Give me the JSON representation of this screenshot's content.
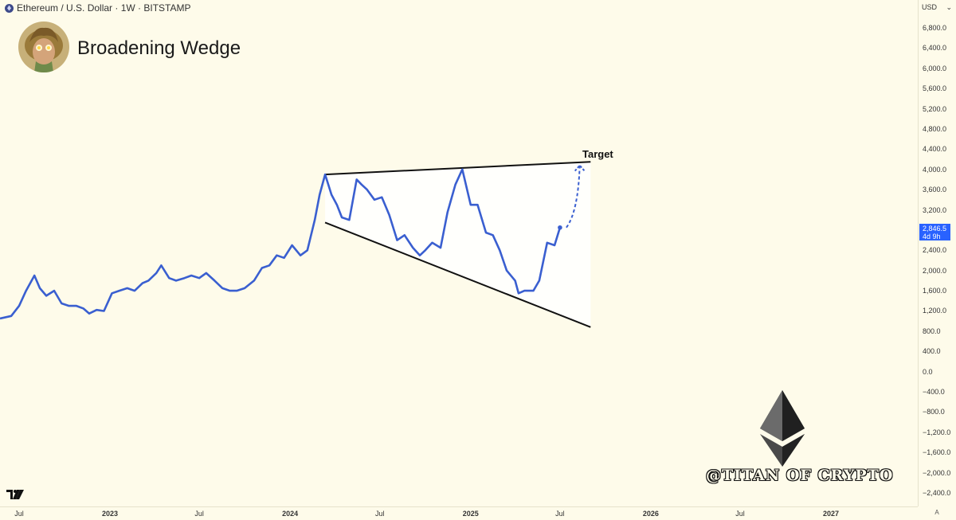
{
  "header": {
    "symbol_line": "Ethereum / U.S. Dollar · 1W · BITSTAMP",
    "title": "Broadening Wedge"
  },
  "price_axis": {
    "currency": "USD",
    "ticks": [
      "6,800.0",
      "6,400.0",
      "6,000.0",
      "5,600.0",
      "5,200.0",
      "4,800.0",
      "4,400.0",
      "4,000.0",
      "3,600.0",
      "3,200.0",
      "2,400.0",
      "2,000.0",
      "1,600.0",
      "1,200.0",
      "800.0",
      "400.0",
      "0.0",
      "−400.0",
      "−800.0",
      "−1,200.0",
      "−1,600.0",
      "−2,000.0",
      "−2,400.0"
    ],
    "current_price": "2,846.5",
    "countdown": "4d 9h"
  },
  "time_axis": {
    "ticks": [
      {
        "label": "Jul",
        "bold": false
      },
      {
        "label": "2023",
        "bold": true
      },
      {
        "label": "Jul",
        "bold": false
      },
      {
        "label": "2024",
        "bold": true
      },
      {
        "label": "Jul",
        "bold": false
      },
      {
        "label": "2025",
        "bold": true
      },
      {
        "label": "Jul",
        "bold": false
      },
      {
        "label": "2026",
        "bold": true
      },
      {
        "label": "Jul",
        "bold": false
      },
      {
        "label": "2027",
        "bold": true
      }
    ]
  },
  "corner_label": "A",
  "annotation": {
    "target_label": "Target"
  },
  "watermark": "@TITAN OF CRYPTO",
  "colors": {
    "background": "#fefbea",
    "price_line": "#3a5fd0",
    "wedge_line": "#111111",
    "price_badge": "#2962ff"
  },
  "chart_data": {
    "type": "line",
    "title": "Broadening Wedge",
    "series": [
      {
        "name": "Ethereum / U.S. Dollar",
        "x": [
          "2022-06-01",
          "2022-06-15",
          "2022-07-01",
          "2022-07-15",
          "2022-08-01",
          "2022-08-12",
          "2022-08-25",
          "2022-09-10",
          "2022-09-25",
          "2022-10-10",
          "2022-10-25",
          "2022-11-08",
          "2022-11-20",
          "2022-12-05",
          "2022-12-20",
          "2023-01-05",
          "2023-01-20",
          "2023-02-05",
          "2023-02-20",
          "2023-03-08",
          "2023-03-20",
          "2023-04-05",
          "2023-04-15",
          "2023-05-01",
          "2023-05-15",
          "2023-06-01",
          "2023-06-15",
          "2023-07-01",
          "2023-07-15",
          "2023-08-01",
          "2023-08-17",
          "2023-09-01",
          "2023-09-15",
          "2023-10-01",
          "2023-10-20",
          "2023-11-05",
          "2023-11-20",
          "2023-12-05",
          "2023-12-20",
          "2024-01-05",
          "2024-01-22",
          "2024-02-05",
          "2024-02-20",
          "2024-03-01",
          "2024-03-12",
          "2024-03-25",
          "2024-04-05",
          "2024-04-15",
          "2024-04-30",
          "2024-05-15",
          "2024-05-25",
          "2024-06-05",
          "2024-06-20",
          "2024-07-05",
          "2024-07-20",
          "2024-08-05",
          "2024-08-20",
          "2024-09-06",
          "2024-09-20",
          "2024-10-01",
          "2024-10-15",
          "2024-11-01",
          "2024-11-15",
          "2024-12-01",
          "2024-12-15",
          "2025-01-01",
          "2025-01-15",
          "2025-02-01",
          "2025-02-15",
          "2025-03-01",
          "2025-03-15",
          "2025-04-01",
          "2025-04-08",
          "2025-04-20",
          "2025-05-08",
          "2025-05-20",
          "2025-06-05",
          "2025-06-20",
          "2025-07-01"
        ],
        "values": [
          1050,
          1100,
          1300,
          1600,
          1900,
          1650,
          1500,
          1600,
          1350,
          1300,
          1300,
          1250,
          1150,
          1220,
          1200,
          1550,
          1600,
          1650,
          1600,
          1750,
          1800,
          1950,
          2100,
          1850,
          1800,
          1850,
          1900,
          1850,
          1950,
          1800,
          1650,
          1600,
          1600,
          1650,
          1800,
          2050,
          2100,
          2300,
          2250,
          2500,
          2300,
          2400,
          3000,
          3500,
          3900,
          3500,
          3300,
          3050,
          3000,
          3800,
          3700,
          3600,
          3400,
          3450,
          3100,
          2600,
          2700,
          2450,
          2300,
          2400,
          2550,
          2450,
          3150,
          3700,
          4000,
          3300,
          3300,
          2750,
          2700,
          2400,
          2000,
          1800,
          1550,
          1600,
          1600,
          1800,
          2550,
          2500,
          2850
        ]
      }
    ],
    "overlays": {
      "upper_trendline": {
        "x": [
          "2024-03-12",
          "2025-09-01"
        ],
        "y": [
          3900,
          4150
        ]
      },
      "lower_trendline": {
        "x": [
          "2024-03-12",
          "2025-09-01"
        ],
        "y": [
          2950,
          880
        ]
      },
      "target_projection": {
        "x": [
          "2025-07-01",
          "2025-08-10"
        ],
        "y": [
          2850,
          4080
        ],
        "label": "Target"
      }
    },
    "ylim": [
      -2400,
      6800
    ],
    "y_scale": "linear",
    "grid": false
  }
}
